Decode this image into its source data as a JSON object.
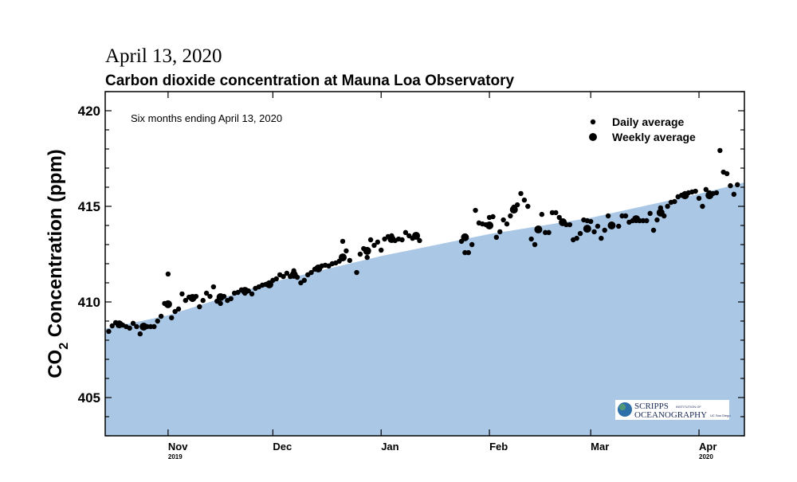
{
  "date_heading": "April 13, 2020",
  "chart_data": {
    "type": "scatter",
    "title": "Carbon dioxide concentration at Mauna Loa Observatory",
    "annotation": "Six months ending April 13, 2020",
    "ylabel_main": "CO",
    "ylabel_sub": "2",
    "ylabel_rest": " Concentration (ppm)",
    "ylim": [
      403,
      421
    ],
    "xlim": [
      "2019-10-14",
      "2020-04-14"
    ],
    "yticks": [
      405,
      410,
      415,
      420
    ],
    "xticks": [
      {
        "date": "2019-11-01",
        "label": "Nov",
        "year": "2019"
      },
      {
        "date": "2019-12-01",
        "label": "Dec",
        "year": ""
      },
      {
        "date": "2020-01-01",
        "label": "Jan",
        "year": ""
      },
      {
        "date": "2020-02-01",
        "label": "Feb",
        "year": ""
      },
      {
        "date": "2020-03-01",
        "label": "Mar",
        "year": ""
      },
      {
        "date": "2020-04-01",
        "label": "Apr",
        "year": "2020"
      }
    ],
    "grid": false,
    "legend_position": "top-right",
    "fill_color": "#aac8e6",
    "point_color": "#000000",
    "background_curve": [
      [
        "2019-10-14",
        408.6
      ],
      [
        "2019-11-01",
        409.3
      ],
      [
        "2019-12-01",
        411.05
      ],
      [
        "2020-01-01",
        412.4
      ],
      [
        "2020-02-01",
        413.55
      ],
      [
        "2020-03-01",
        414.4
      ],
      [
        "2020-04-01",
        415.65
      ],
      [
        "2020-04-14",
        416.25
      ]
    ],
    "series": [
      {
        "name": "Daily average",
        "marker": "small-dot",
        "points": [
          [
            "2019-10-15",
            408.46
          ],
          [
            "2019-10-16",
            408.75
          ],
          [
            "2019-10-17",
            408.92
          ],
          [
            "2019-10-18",
            408.88
          ],
          [
            "2019-10-19",
            408.79
          ],
          [
            "2019-10-20",
            408.71
          ],
          [
            "2019-10-21",
            408.63
          ],
          [
            "2019-10-22",
            408.88
          ],
          [
            "2019-10-23",
            408.71
          ],
          [
            "2019-10-24",
            408.33
          ],
          [
            "2019-10-26",
            408.71
          ],
          [
            "2019-10-27",
            408.71
          ],
          [
            "2019-10-28",
            408.71
          ],
          [
            "2019-10-29",
            409.0
          ],
          [
            "2019-10-30",
            409.25
          ],
          [
            "2019-10-31",
            409.92
          ],
          [
            "2019-11-01",
            411.46
          ],
          [
            "2019-11-02",
            409.17
          ],
          [
            "2019-11-03",
            409.5
          ],
          [
            "2019-11-04",
            409.63
          ],
          [
            "2019-11-05",
            410.42
          ],
          [
            "2019-11-06",
            410.08
          ],
          [
            "2019-11-07",
            410.25
          ],
          [
            "2019-11-08",
            410.13
          ],
          [
            "2019-11-09",
            410.29
          ],
          [
            "2019-11-10",
            409.75
          ],
          [
            "2019-11-11",
            410.08
          ],
          [
            "2019-11-12",
            410.46
          ],
          [
            "2019-11-13",
            410.29
          ],
          [
            "2019-11-14",
            410.79
          ],
          [
            "2019-11-15",
            410.04
          ],
          [
            "2019-11-16",
            409.92
          ],
          [
            "2019-11-17",
            410.29
          ],
          [
            "2019-11-18",
            410.08
          ],
          [
            "2019-11-19",
            410.17
          ],
          [
            "2019-11-20",
            410.46
          ],
          [
            "2019-11-21",
            410.5
          ],
          [
            "2019-11-22",
            410.63
          ],
          [
            "2019-11-23",
            410.46
          ],
          [
            "2019-11-24",
            410.58
          ],
          [
            "2019-11-25",
            410.42
          ],
          [
            "2019-11-26",
            410.71
          ],
          [
            "2019-11-27",
            410.79
          ],
          [
            "2019-11-28",
            410.88
          ],
          [
            "2019-11-29",
            410.92
          ],
          [
            "2019-11-30",
            411.0
          ],
          [
            "2019-12-01",
            411.13
          ],
          [
            "2019-12-02",
            411.21
          ],
          [
            "2019-12-03",
            411.42
          ],
          [
            "2019-12-04",
            411.33
          ],
          [
            "2019-12-05",
            411.5
          ],
          [
            "2019-12-06",
            411.33
          ],
          [
            "2019-12-07",
            411.63
          ],
          [
            "2019-12-08",
            411.29
          ],
          [
            "2019-12-09",
            411.0
          ],
          [
            "2019-12-10",
            411.13
          ],
          [
            "2019-12-11",
            411.42
          ],
          [
            "2019-12-12",
            411.54
          ],
          [
            "2019-12-13",
            411.71
          ],
          [
            "2019-12-14",
            411.75
          ],
          [
            "2019-12-15",
            411.88
          ],
          [
            "2019-12-16",
            411.92
          ],
          [
            "2019-12-17",
            411.88
          ],
          [
            "2019-12-18",
            412.0
          ],
          [
            "2019-12-19",
            412.04
          ],
          [
            "2019-12-20",
            412.13
          ],
          [
            "2019-12-21",
            413.17
          ],
          [
            "2019-12-22",
            412.67
          ],
          [
            "2019-12-23",
            412.17
          ],
          [
            "2019-12-25",
            411.54
          ],
          [
            "2019-12-26",
            412.5
          ],
          [
            "2019-12-27",
            412.79
          ],
          [
            "2019-12-28",
            412.33
          ],
          [
            "2019-12-29",
            413.25
          ],
          [
            "2019-12-30",
            412.96
          ],
          [
            "2019-12-31",
            413.13
          ],
          [
            "2020-01-01",
            412.71
          ],
          [
            "2020-01-02",
            413.29
          ],
          [
            "2020-01-03",
            413.42
          ],
          [
            "2020-01-04",
            413.46
          ],
          [
            "2020-01-05",
            413.21
          ],
          [
            "2020-01-06",
            413.29
          ],
          [
            "2020-01-07",
            413.25
          ],
          [
            "2020-01-08",
            413.63
          ],
          [
            "2020-01-09",
            413.46
          ],
          [
            "2020-01-10",
            413.33
          ],
          [
            "2020-01-11",
            413.42
          ],
          [
            "2020-01-12",
            413.21
          ],
          [
            "2020-01-24",
            413.17
          ],
          [
            "2020-01-25",
            412.58
          ],
          [
            "2020-01-26",
            412.58
          ],
          [
            "2020-01-27",
            413.0
          ],
          [
            "2020-01-28",
            414.79
          ],
          [
            "2020-01-29",
            414.13
          ],
          [
            "2020-01-30",
            414.08
          ],
          [
            "2020-01-31",
            414.04
          ],
          [
            "2020-02-01",
            414.42
          ],
          [
            "2020-02-02",
            414.46
          ],
          [
            "2020-02-03",
            413.38
          ],
          [
            "2020-02-04",
            413.67
          ],
          [
            "2020-02-05",
            414.29
          ],
          [
            "2020-02-06",
            414.08
          ],
          [
            "2020-02-07",
            414.5
          ],
          [
            "2020-02-08",
            414.96
          ],
          [
            "2020-02-09",
            415.08
          ],
          [
            "2020-02-10",
            415.67
          ],
          [
            "2020-02-11",
            415.33
          ],
          [
            "2020-02-12",
            415.0
          ],
          [
            "2020-02-13",
            413.29
          ],
          [
            "2020-02-14",
            413.0
          ],
          [
            "2020-02-16",
            414.58
          ],
          [
            "2020-02-17",
            413.63
          ],
          [
            "2020-02-18",
            413.63
          ],
          [
            "2020-02-19",
            414.67
          ],
          [
            "2020-02-20",
            414.67
          ],
          [
            "2020-02-21",
            414.42
          ],
          [
            "2020-02-23",
            414.04
          ],
          [
            "2020-02-24",
            414.04
          ],
          [
            "2020-02-25",
            413.25
          ],
          [
            "2020-02-26",
            413.33
          ],
          [
            "2020-02-27",
            413.58
          ],
          [
            "2020-02-28",
            414.29
          ],
          [
            "2020-02-29",
            414.25
          ],
          [
            "2020-03-01",
            414.21
          ],
          [
            "2020-03-02",
            413.67
          ],
          [
            "2020-03-03",
            413.96
          ],
          [
            "2020-03-04",
            413.33
          ],
          [
            "2020-03-05",
            413.75
          ],
          [
            "2020-03-06",
            414.5
          ],
          [
            "2020-03-09",
            413.96
          ],
          [
            "2020-03-10",
            414.5
          ],
          [
            "2020-03-11",
            414.5
          ],
          [
            "2020-03-12",
            414.17
          ],
          [
            "2020-03-13",
            414.25
          ],
          [
            "2020-03-15",
            414.25
          ],
          [
            "2020-03-16",
            414.25
          ],
          [
            "2020-03-17",
            414.25
          ],
          [
            "2020-03-18",
            414.63
          ],
          [
            "2020-03-19",
            413.75
          ],
          [
            "2020-03-20",
            414.29
          ],
          [
            "2020-03-21",
            414.92
          ],
          [
            "2020-03-22",
            414.5
          ],
          [
            "2020-03-23",
            415.0
          ],
          [
            "2020-03-24",
            415.21
          ],
          [
            "2020-03-25",
            415.25
          ],
          [
            "2020-03-26",
            415.5
          ],
          [
            "2020-03-27",
            415.58
          ],
          [
            "2020-03-28",
            415.67
          ],
          [
            "2020-03-29",
            415.71
          ],
          [
            "2020-03-30",
            415.75
          ],
          [
            "2020-03-31",
            415.79
          ],
          [
            "2020-04-01",
            415.42
          ],
          [
            "2020-04-02",
            415.0
          ],
          [
            "2020-04-03",
            415.88
          ],
          [
            "2020-04-04",
            415.71
          ],
          [
            "2020-04-05",
            415.67
          ],
          [
            "2020-04-06",
            415.71
          ],
          [
            "2020-04-07",
            417.92
          ],
          [
            "2020-04-08",
            416.79
          ],
          [
            "2020-04-09",
            416.71
          ],
          [
            "2020-04-10",
            416.08
          ],
          [
            "2020-04-11",
            415.63
          ],
          [
            "2020-04-12",
            416.13
          ]
        ]
      },
      {
        "name": "Weekly average",
        "marker": "large-dot",
        "points": [
          [
            "2019-10-18",
            408.83
          ],
          [
            "2019-10-25",
            408.71
          ],
          [
            "2019-11-01",
            409.88
          ],
          [
            "2019-11-08",
            410.21
          ],
          [
            "2019-11-16",
            410.25
          ],
          [
            "2019-11-23",
            410.58
          ],
          [
            "2019-11-30",
            410.92
          ],
          [
            "2019-12-07",
            411.42
          ],
          [
            "2019-12-14",
            411.75
          ],
          [
            "2019-12-21",
            412.33
          ],
          [
            "2019-12-28",
            412.67
          ],
          [
            "2020-01-04",
            413.29
          ],
          [
            "2020-01-11",
            413.46
          ],
          [
            "2020-01-25",
            413.38
          ],
          [
            "2020-02-01",
            414.0
          ],
          [
            "2020-02-08",
            414.83
          ],
          [
            "2020-02-15",
            413.79
          ],
          [
            "2020-02-22",
            414.17
          ],
          [
            "2020-02-29",
            413.83
          ],
          [
            "2020-03-07",
            414.0
          ],
          [
            "2020-03-14",
            414.33
          ],
          [
            "2020-03-21",
            414.67
          ],
          [
            "2020-03-28",
            415.58
          ],
          [
            "2020-04-04",
            415.58
          ]
        ]
      }
    ]
  },
  "logo": {
    "line1": "SCRIPPS",
    "line1_small": "INSTITUTION OF",
    "line2": "OCEANOGRAPHY",
    "line2_small": "UC San Diego"
  }
}
